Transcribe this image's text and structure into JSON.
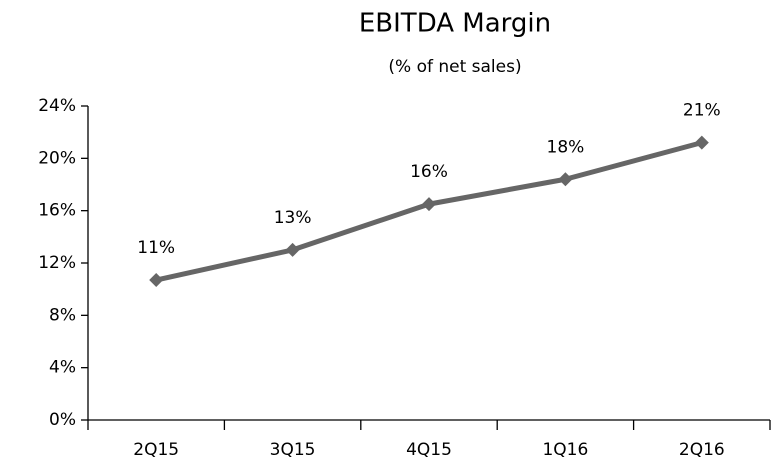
{
  "chart_data": {
    "type": "line",
    "title": "EBITDA Margin",
    "subtitle": "(% of net sales)",
    "categories": [
      "2Q15",
      "3Q15",
      "4Q15",
      "1Q16",
      "2Q16"
    ],
    "values": [
      10.7,
      13.0,
      16.5,
      18.4,
      21.2
    ],
    "value_labels": [
      "11%",
      "13%",
      "16%",
      "18%",
      "21%"
    ],
    "color": "#666666",
    "ylim": [
      0,
      24
    ],
    "yticks": [
      {
        "value": 0,
        "label": "0%"
      },
      {
        "value": 4,
        "label": "4%"
      },
      {
        "value": 8,
        "label": "8%"
      },
      {
        "value": 12,
        "label": "12%"
      },
      {
        "value": 16,
        "label": "16%"
      },
      {
        "value": 20,
        "label": "20%"
      },
      {
        "value": 24,
        "label": "24%"
      }
    ],
    "grid": false
  }
}
